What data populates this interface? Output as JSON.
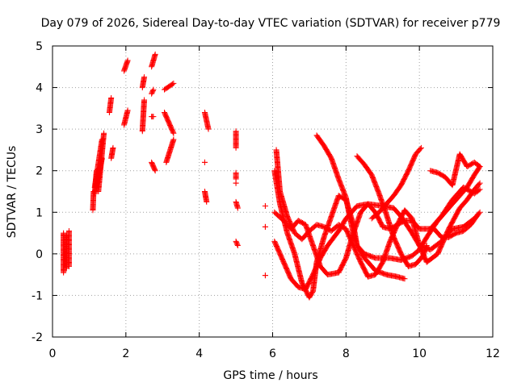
{
  "chart_data": {
    "type": "scatter",
    "title": "Day 079 of 2026, Sidereal Day-to-day VTEC variation (SDTVAR) for receiver p779",
    "xlabel": "GPS time / hours",
    "ylabel": "SDTVAR / TECUs",
    "xlim": [
      0,
      12
    ],
    "ylim": [
      -2,
      5
    ],
    "xticks": [
      0,
      2,
      4,
      6,
      8,
      10,
      12
    ],
    "yticks": [
      -2,
      -1,
      0,
      1,
      2,
      3,
      4,
      5
    ],
    "xtick_labels": [
      "0",
      "2",
      "4",
      "6",
      "8",
      "10",
      "12"
    ],
    "ytick_labels": [
      "-2",
      "-1",
      "0",
      "1",
      "2",
      "3",
      "4",
      "5"
    ],
    "grid": true,
    "marker": "+",
    "marker_color": "#ff0000",
    "series": [
      {
        "name": "SDTVAR",
        "segments": [
          [
            [
              0.3,
              -0.45
            ],
            [
              0.3,
              0.5
            ]
          ],
          [
            [
              0.38,
              -0.35
            ],
            [
              0.38,
              0.45
            ]
          ],
          [
            [
              0.45,
              -0.3
            ],
            [
              0.45,
              0.55
            ]
          ],
          [
            [
              1.1,
              1.05
            ],
            [
              1.12,
              1.5
            ]
          ],
          [
            [
              1.15,
              1.45
            ],
            [
              1.2,
              2.0
            ]
          ],
          [
            [
              1.15,
              1.6
            ],
            [
              1.35,
              2.75
            ]
          ],
          [
            [
              1.2,
              1.6
            ],
            [
              1.35,
              2.3
            ]
          ],
          [
            [
              1.25,
              1.5
            ],
            [
              1.4,
              2.9
            ]
          ],
          [
            [
              1.55,
              3.4
            ],
            [
              1.6,
              3.75
            ]
          ],
          [
            [
              1.6,
              2.3
            ],
            [
              1.65,
              2.55
            ]
          ],
          [
            [
              1.95,
              4.4
            ],
            [
              2.05,
              4.65
            ]
          ],
          [
            [
              1.95,
              3.1
            ],
            [
              2.05,
              3.45
            ]
          ],
          [
            [
              2.45,
              2.95
            ],
            [
              2.5,
              3.7
            ]
          ],
          [
            [
              2.45,
              4.0
            ],
            [
              2.5,
              4.25
            ]
          ],
          [
            [
              2.7,
              4.5
            ],
            [
              2.8,
              4.8
            ]
          ],
          [
            [
              2.7,
              3.85
            ],
            [
              2.75,
              3.95
            ]
          ],
          [
            [
              2.7,
              3.3
            ],
            [
              2.75,
              3.3
            ]
          ],
          [
            [
              2.7,
              2.2
            ],
            [
              2.8,
              2.0
            ]
          ],
          [
            [
              3.05,
              3.95
            ],
            [
              3.3,
              4.1
            ]
          ],
          [
            [
              3.05,
              3.4
            ],
            [
              3.3,
              2.9
            ]
          ],
          [
            [
              3.1,
              2.2
            ],
            [
              3.3,
              2.75
            ]
          ],
          [
            [
              4.15,
              3.4
            ],
            [
              4.25,
              3.0
            ]
          ],
          [
            [
              4.15,
              2.2
            ],
            [
              4.15,
              2.2
            ]
          ],
          [
            [
              4.15,
              1.5
            ],
            [
              4.2,
              1.25
            ]
          ],
          [
            [
              5.0,
              2.95
            ],
            [
              5.0,
              2.55
            ]
          ],
          [
            [
              5.0,
              1.95
            ],
            [
              5.0,
              1.8
            ]
          ],
          [
            [
              5.0,
              1.25
            ],
            [
              5.05,
              1.1
            ]
          ],
          [
            [
              5.0,
              1.7
            ],
            [
              5.0,
              1.7
            ]
          ],
          [
            [
              5.0,
              0.3
            ],
            [
              5.05,
              0.2
            ]
          ],
          [
            [
              5.8,
              1.15
            ],
            [
              5.8,
              1.15
            ]
          ],
          [
            [
              5.8,
              0.65
            ],
            [
              5.8,
              0.65
            ]
          ],
          [
            [
              5.8,
              -0.52
            ],
            [
              5.8,
              -0.52
            ]
          ],
          [
            [
              6.05,
              2.0
            ],
            [
              6.2,
              1.2
            ],
            [
              6.4,
              0.5
            ],
            [
              6.6,
              0.0
            ],
            [
              6.8,
              -0.7
            ],
            [
              7.0,
              -1.05
            ],
            [
              7.1,
              -0.9
            ],
            [
              7.2,
              -0.2
            ],
            [
              7.4,
              0.4
            ],
            [
              7.6,
              0.9
            ],
            [
              7.8,
              1.4
            ],
            [
              8.0,
              1.3
            ],
            [
              8.2,
              0.7
            ],
            [
              8.3,
              0.2
            ],
            [
              8.5,
              -0.1
            ],
            [
              8.8,
              -0.4
            ],
            [
              9.1,
              -0.5
            ],
            [
              9.4,
              -0.55
            ],
            [
              9.6,
              -0.6
            ]
          ],
          [
            [
              6.1,
              2.5
            ],
            [
              6.2,
              1.5
            ],
            [
              6.4,
              0.9
            ],
            [
              6.6,
              0.5
            ],
            [
              6.8,
              0.35
            ],
            [
              7.0,
              0.55
            ],
            [
              7.2,
              0.7
            ],
            [
              7.4,
              0.65
            ],
            [
              7.6,
              0.55
            ],
            [
              7.8,
              0.7
            ],
            [
              8.0,
              0.6
            ],
            [
              8.2,
              0.2
            ],
            [
              8.4,
              -0.2
            ],
            [
              8.6,
              -0.55
            ],
            [
              8.8,
              -0.5
            ],
            [
              9.0,
              -0.2
            ],
            [
              9.2,
              0.3
            ],
            [
              9.4,
              0.7
            ],
            [
              9.6,
              1.05
            ],
            [
              9.8,
              0.85
            ],
            [
              10.0,
              0.2
            ],
            [
              10.2,
              -0.2
            ],
            [
              10.5,
              0.0
            ],
            [
              10.8,
              0.6
            ],
            [
              11.1,
              1.1
            ],
            [
              11.3,
              1.3
            ],
            [
              11.5,
              1.55
            ],
            [
              11.65,
              1.7
            ]
          ],
          [
            [
              6.05,
              1.0
            ],
            [
              6.3,
              0.8
            ],
            [
              6.5,
              0.6
            ],
            [
              6.7,
              0.8
            ],
            [
              6.9,
              0.7
            ],
            [
              7.1,
              0.2
            ],
            [
              7.3,
              -0.3
            ],
            [
              7.5,
              -0.5
            ],
            [
              7.8,
              -0.45
            ],
            [
              8.0,
              -0.1
            ],
            [
              8.2,
              0.5
            ],
            [
              8.4,
              1.0
            ],
            [
              8.6,
              1.2
            ],
            [
              8.8,
              1.0
            ],
            [
              9.0,
              0.65
            ],
            [
              9.2,
              0.6
            ],
            [
              9.4,
              0.7
            ],
            [
              9.6,
              0.8
            ],
            [
              9.8,
              0.8
            ],
            [
              10.0,
              0.6
            ],
            [
              10.3,
              0.6
            ],
            [
              10.6,
              0.9
            ],
            [
              10.9,
              1.3
            ],
            [
              11.2,
              1.6
            ],
            [
              11.5,
              1.45
            ],
            [
              11.65,
              1.55
            ]
          ],
          [
            [
              6.05,
              0.3
            ],
            [
              6.3,
              -0.2
            ],
            [
              6.5,
              -0.6
            ],
            [
              6.7,
              -0.8
            ],
            [
              6.9,
              -0.85
            ],
            [
              7.1,
              -0.5
            ],
            [
              7.3,
              -0.1
            ],
            [
              7.5,
              0.2
            ],
            [
              7.8,
              0.55
            ],
            [
              8.0,
              0.85
            ],
            [
              8.3,
              1.15
            ],
            [
              8.6,
              1.2
            ],
            [
              9.0,
              1.15
            ],
            [
              9.3,
              1.1
            ],
            [
              9.5,
              0.9
            ],
            [
              9.8,
              0.5
            ],
            [
              10.0,
              0.2
            ],
            [
              10.3,
              0.1
            ],
            [
              10.6,
              0.3
            ],
            [
              10.9,
              0.6
            ],
            [
              11.2,
              0.65
            ],
            [
              11.5,
              0.85
            ],
            [
              11.65,
              1.0
            ]
          ],
          [
            [
              7.2,
              2.85
            ],
            [
              7.4,
              2.6
            ],
            [
              7.6,
              2.3
            ],
            [
              7.8,
              1.8
            ],
            [
              8.0,
              1.35
            ],
            [
              8.1,
              0.9
            ],
            [
              8.2,
              0.5
            ],
            [
              8.3,
              0.2
            ],
            [
              8.5,
              0.0
            ],
            [
              8.8,
              -0.1
            ],
            [
              9.0,
              -0.1
            ],
            [
              9.2,
              -0.1
            ],
            [
              9.5,
              -0.15
            ],
            [
              9.8,
              -0.05
            ],
            [
              10.0,
              0.1
            ],
            [
              10.2,
              0.4
            ],
            [
              10.5,
              0.8
            ],
            [
              10.8,
              1.1
            ],
            [
              11.0,
              1.3
            ],
            [
              11.3,
              1.6
            ],
            [
              11.5,
              1.9
            ],
            [
              11.65,
              2.1
            ]
          ],
          [
            [
              8.3,
              2.35
            ],
            [
              8.5,
              2.15
            ],
            [
              8.7,
              1.9
            ],
            [
              8.9,
              1.45
            ],
            [
              9.1,
              0.95
            ],
            [
              9.3,
              0.4
            ],
            [
              9.5,
              0.0
            ],
            [
              9.7,
              -0.3
            ],
            [
              9.9,
              -0.25
            ],
            [
              10.1,
              -0.05
            ],
            [
              10.2,
              0.2
            ]
          ],
          [
            [
              8.7,
              0.85
            ],
            [
              8.9,
              1.0
            ],
            [
              9.1,
              1.2
            ],
            [
              9.3,
              1.4
            ],
            [
              9.5,
              1.65
            ],
            [
              9.7,
              2.0
            ],
            [
              9.9,
              2.4
            ],
            [
              10.05,
              2.55
            ]
          ],
          [
            [
              10.3,
              2.0
            ],
            [
              10.5,
              1.95
            ],
            [
              10.7,
              1.85
            ],
            [
              10.9,
              1.65
            ],
            [
              11.1,
              2.4
            ],
            [
              11.3,
              2.1
            ],
            [
              11.5,
              2.2
            ],
            [
              11.65,
              2.1
            ]
          ],
          [
            [
              10.4,
              0.6
            ],
            [
              10.6,
              0.4
            ],
            [
              10.8,
              0.4
            ],
            [
              11.0,
              0.5
            ],
            [
              11.2,
              0.55
            ],
            [
              11.4,
              0.7
            ],
            [
              11.6,
              0.95
            ]
          ]
        ]
      }
    ]
  }
}
